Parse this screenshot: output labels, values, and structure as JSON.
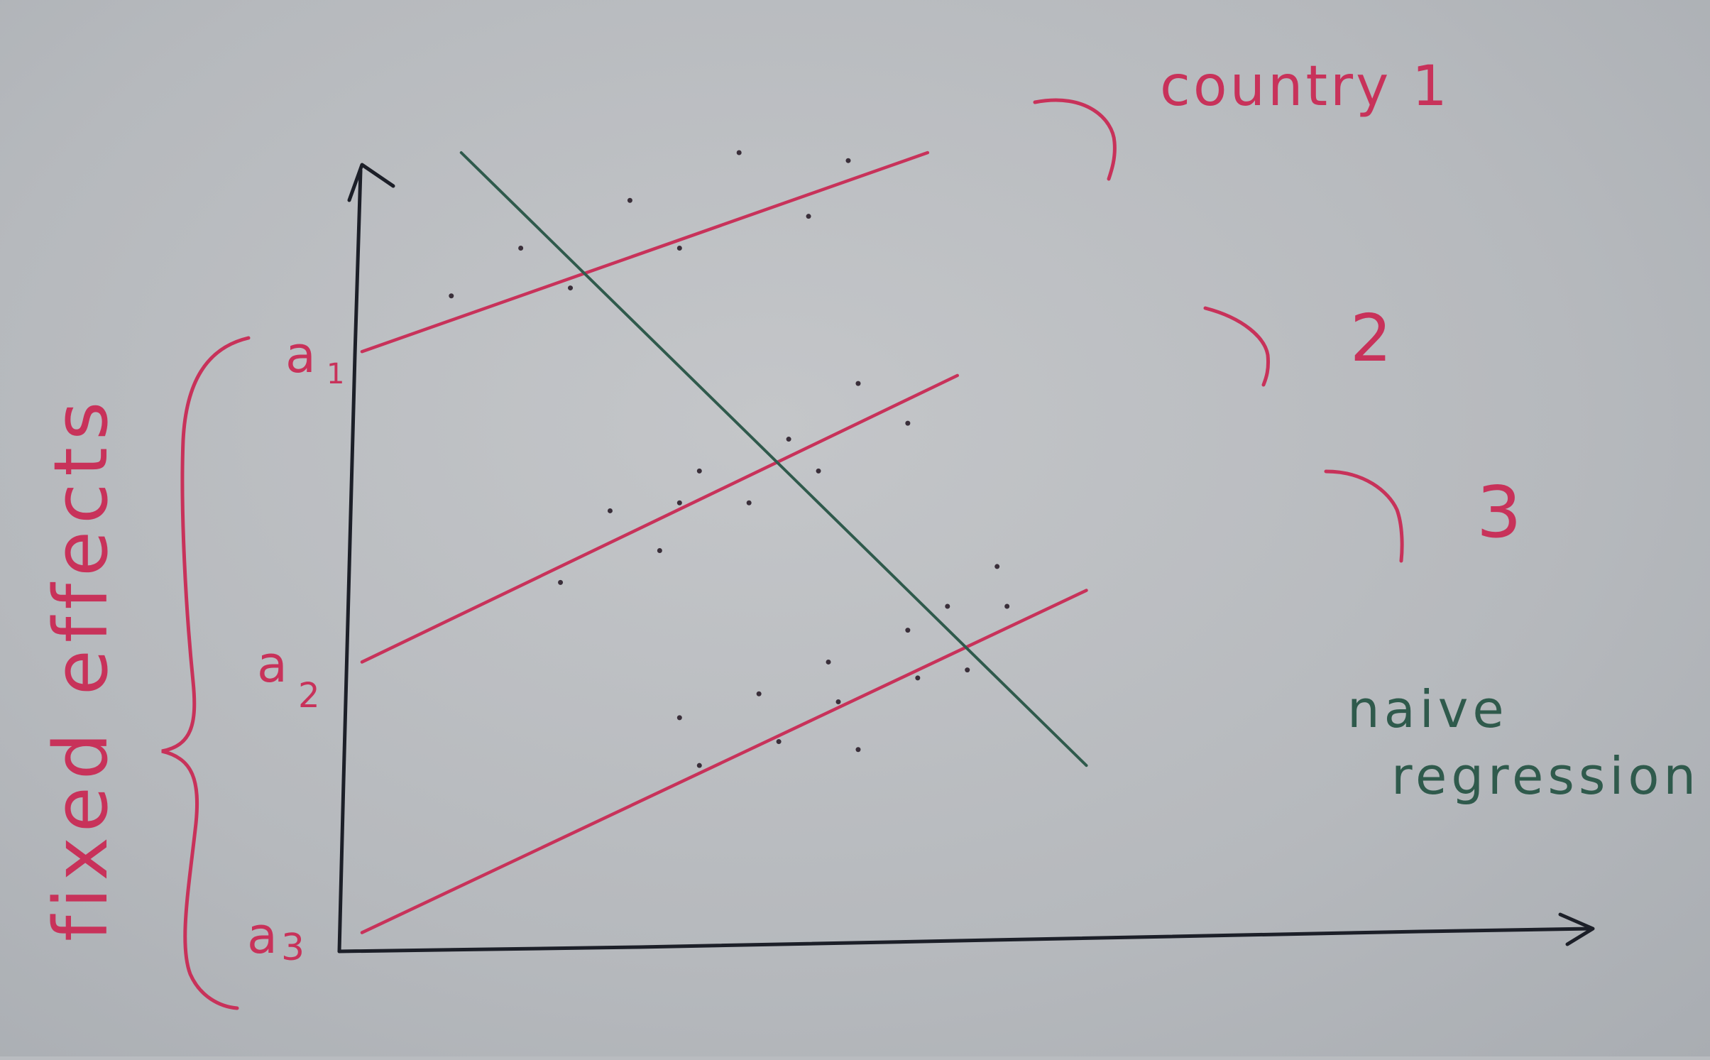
{
  "colors": {
    "paper": "#b9bcc0",
    "axis_ink": "#1c1f28",
    "fixed_effect_ink": "#c8325a",
    "naive_ink": "#2f5a4c"
  },
  "labels": {
    "country_1": "country 1",
    "country_2": "2",
    "country_3": "3",
    "a1": "a",
    "a1_sub": "1",
    "a2": "a",
    "a2_sub": "2",
    "a3": "a",
    "a3_sub": "3",
    "fixed_effects": "fixed effects",
    "naive_line1": "naive",
    "naive_line2": "regression"
  },
  "chart_data": {
    "type": "scatter",
    "xlim": [
      0,
      100
    ],
    "ylim": [
      0,
      100
    ],
    "grid": false,
    "series": [
      {
        "name": "country 1",
        "intercept_label": "a1",
        "line": {
          "x": [
            2,
            59
          ],
          "y": [
            75,
            100
          ]
        },
        "points": [
          [
            11,
            82
          ],
          [
            18,
            88
          ],
          [
            23,
            83
          ],
          [
            29,
            94
          ],
          [
            34,
            88
          ],
          [
            40,
            100
          ],
          [
            47,
            92
          ],
          [
            51,
            99
          ]
        ]
      },
      {
        "name": "2",
        "intercept_label": "a2",
        "line": {
          "x": [
            2,
            62
          ],
          "y": [
            36,
            72
          ]
        },
        "points": [
          [
            22,
            46
          ],
          [
            27,
            55
          ],
          [
            32,
            50
          ],
          [
            34,
            56
          ],
          [
            36,
            60
          ],
          [
            41,
            56
          ],
          [
            45,
            64
          ],
          [
            48,
            60
          ],
          [
            57,
            66
          ],
          [
            52,
            71
          ]
        ]
      },
      {
        "name": "3",
        "intercept_label": "a3",
        "line": {
          "x": [
            2,
            75
          ],
          "y": [
            2,
            45
          ]
        },
        "points": [
          [
            34,
            29
          ],
          [
            36,
            23
          ],
          [
            42,
            32
          ],
          [
            44,
            26
          ],
          [
            49,
            36
          ],
          [
            50,
            31
          ],
          [
            52,
            25
          ],
          [
            57,
            40
          ],
          [
            58,
            34
          ],
          [
            61,
            43
          ],
          [
            63,
            35
          ],
          [
            66,
            48
          ],
          [
            67,
            43
          ]
        ]
      }
    ],
    "naive_regression": {
      "x": [
        12,
        75
      ],
      "y": [
        100,
        23
      ]
    }
  }
}
